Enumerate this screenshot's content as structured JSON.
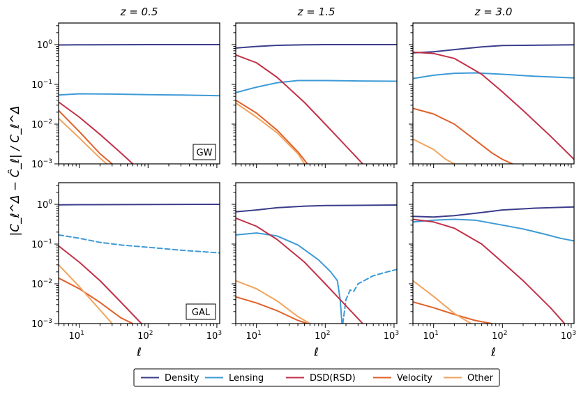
{
  "chart_data": {
    "type": "line",
    "figure": {
      "ylabel": "|C_ℓ^Δ − Ĉ_ℓ| / C_ℓ^Δ",
      "xlabel": "ℓ",
      "x_scale": "log",
      "y_scale": "log",
      "xlim": [
        5,
        1100
      ],
      "ylim": [
        0.001,
        3.5
      ],
      "x_ticks": [
        {
          "value": 10,
          "base": "10",
          "exp": "1"
        },
        {
          "value": 100,
          "base": "10",
          "exp": "2"
        },
        {
          "value": 1000,
          "base": "10",
          "exp": "3"
        }
      ],
      "y_ticks": [
        {
          "value": 1,
          "base": "10",
          "exp": "0"
        },
        {
          "value": 0.1,
          "base": "10",
          "exp": "−1"
        },
        {
          "value": 0.01,
          "base": "10",
          "exp": "−2"
        },
        {
          "value": 0.001,
          "base": "10",
          "exp": "−3"
        }
      ]
    },
    "columns": [
      "z = 0.5",
      "z = 1.5",
      "z = 3.0"
    ],
    "rows": [
      "GW",
      "GAL"
    ],
    "row_tags": [
      "GW",
      "GAL"
    ],
    "legend": {
      "position": "bottom-center",
      "entries": [
        {
          "name": "Density",
          "color": "#3b3d8b"
        },
        {
          "name": "Lensing",
          "color": "#3d9ad6"
        },
        {
          "name": "DSD(RSD)",
          "color": "#c23148"
        },
        {
          "name": "Velocity",
          "color": "#e0612b"
        },
        {
          "name": "Other",
          "color": "#f2a35c"
        }
      ]
    },
    "panels": [
      {
        "row": 0,
        "col": 0,
        "series": [
          {
            "name": "Density",
            "x": [
              5,
              10,
              100,
              1100
            ],
            "y": [
              0.98,
              0.99,
              1.0,
              1.0
            ]
          },
          {
            "name": "Lensing",
            "x": [
              5,
              10,
              30,
              100,
              300,
              1100
            ],
            "y": [
              0.054,
              0.058,
              0.057,
              0.055,
              0.054,
              0.052
            ]
          },
          {
            "name": "DSD(RSD)",
            "x": [
              5,
              10,
              20,
              40,
              60
            ],
            "y": [
              0.036,
              0.015,
              0.0055,
              0.0019,
              0.001
            ]
          },
          {
            "name": "Velocity",
            "x": [
              5,
              10,
              20,
              30
            ],
            "y": [
              0.022,
              0.0065,
              0.0018,
              0.001
            ]
          },
          {
            "name": "Other",
            "x": [
              5,
              10,
              20,
              25
            ],
            "y": [
              0.014,
              0.0045,
              0.0014,
              0.001
            ]
          }
        ]
      },
      {
        "row": 0,
        "col": 1,
        "series": [
          {
            "name": "Density",
            "x": [
              5,
              10,
              20,
              50,
              100,
              1100
            ],
            "y": [
              0.82,
              0.9,
              0.96,
              0.99,
              1.0,
              1.0
            ]
          },
          {
            "name": "Lensing",
            "x": [
              5,
              10,
              20,
              40,
              100,
              300,
              1100
            ],
            "y": [
              0.062,
              0.085,
              0.11,
              0.125,
              0.125,
              0.122,
              0.12
            ]
          },
          {
            "name": "DSD(RSD)",
            "x": [
              5,
              10,
              20,
              50,
              100,
              200,
              350
            ],
            "y": [
              0.55,
              0.35,
              0.15,
              0.035,
              0.01,
              0.0028,
              0.001
            ]
          },
          {
            "name": "Velocity",
            "x": [
              5,
              10,
              20,
              40,
              55
            ],
            "y": [
              0.04,
              0.019,
              0.007,
              0.002,
              0.001
            ]
          },
          {
            "name": "Other",
            "x": [
              5,
              10,
              20,
              40,
              50
            ],
            "y": [
              0.034,
              0.015,
              0.006,
              0.0018,
              0.001
            ]
          }
        ]
      },
      {
        "row": 0,
        "col": 2,
        "series": [
          {
            "name": "Density",
            "x": [
              5,
              10,
              20,
              50,
              100,
              1100
            ],
            "y": [
              0.62,
              0.66,
              0.75,
              0.88,
              0.95,
              0.99
            ]
          },
          {
            "name": "Lensing",
            "x": [
              5,
              10,
              20,
              40,
              100,
              300,
              1100
            ],
            "y": [
              0.14,
              0.17,
              0.19,
              0.195,
              0.18,
              0.16,
              0.145
            ]
          },
          {
            "name": "DSD(RSD)",
            "x": [
              5,
              10,
              20,
              50,
              100,
              200,
              500,
              1100
            ],
            "y": [
              0.65,
              0.6,
              0.45,
              0.18,
              0.065,
              0.022,
              0.005,
              0.0013
            ]
          },
          {
            "name": "Velocity",
            "x": [
              5,
              10,
              20,
              40,
              70,
              100,
              140
            ],
            "y": [
              0.025,
              0.018,
              0.01,
              0.004,
              0.0019,
              0.0013,
              0.001
            ]
          },
          {
            "name": "Other",
            "x": [
              5,
              10,
              15,
              20
            ],
            "y": [
              0.0042,
              0.0023,
              0.0013,
              0.001
            ]
          }
        ]
      },
      {
        "row": 1,
        "col": 0,
        "series": [
          {
            "name": "Density",
            "x": [
              5,
              10,
              100,
              1100
            ],
            "y": [
              0.97,
              0.98,
              0.99,
              1.0
            ]
          },
          {
            "name": "Lensing",
            "dashed": true,
            "x": [
              5,
              10,
              20,
              40,
              100,
              300,
              1100
            ],
            "y": [
              0.17,
              0.14,
              0.11,
              0.095,
              0.083,
              0.07,
              0.06
            ]
          },
          {
            "name": "DSD(RSD)",
            "x": [
              5,
              10,
              20,
              40,
              80
            ],
            "y": [
              0.09,
              0.035,
              0.012,
              0.0035,
              0.001
            ]
          },
          {
            "name": "Velocity",
            "x": [
              5,
              10,
              20,
              40,
              60
            ],
            "y": [
              0.014,
              0.0075,
              0.0034,
              0.0014,
              0.001
            ]
          },
          {
            "name": "Other",
            "x": [
              5,
              10,
              20,
              30
            ],
            "y": [
              0.03,
              0.0085,
              0.0022,
              0.001
            ]
          }
        ]
      },
      {
        "row": 1,
        "col": 1,
        "series": [
          {
            "name": "Density",
            "x": [
              5,
              10,
              20,
              50,
              100,
              1100
            ],
            "y": [
              0.65,
              0.72,
              0.82,
              0.9,
              0.93,
              0.96
            ]
          },
          {
            "name": "Lensing",
            "x": [
              5,
              10,
              20,
              40,
              80,
              120,
              150,
              165,
              175
            ],
            "y": [
              0.17,
              0.19,
              0.16,
              0.095,
              0.04,
              0.02,
              0.012,
              0.004,
              0.001
            ]
          },
          {
            "name": "Lensing",
            "dashed": true,
            "x": [
              180,
              200,
              230,
              260,
              300,
              500,
              800,
              1100
            ],
            "y": [
              0.001,
              0.004,
              0.007,
              0.0065,
              0.01,
              0.016,
              0.02,
              0.023
            ]
          },
          {
            "name": "DSD(RSD)",
            "x": [
              5,
              10,
              20,
              50,
              100,
              200,
              350
            ],
            "y": [
              0.45,
              0.28,
              0.13,
              0.035,
              0.01,
              0.0028,
              0.001
            ]
          },
          {
            "name": "Velocity",
            "x": [
              5,
              10,
              20,
              40,
              55
            ],
            "y": [
              0.0047,
              0.0033,
              0.0021,
              0.0012,
              0.001
            ]
          },
          {
            "name": "Other",
            "x": [
              5,
              10,
              20,
              40,
              60
            ],
            "y": [
              0.012,
              0.0075,
              0.0037,
              0.0015,
              0.001
            ]
          }
        ]
      },
      {
        "row": 1,
        "col": 2,
        "series": [
          {
            "name": "Density",
            "x": [
              5,
              10,
              20,
              50,
              100,
              300,
              1100
            ],
            "y": [
              0.5,
              0.48,
              0.52,
              0.62,
              0.72,
              0.8,
              0.86
            ]
          },
          {
            "name": "Lensing",
            "x": [
              5,
              10,
              20,
              40,
              100,
              200,
              400,
              700,
              1100
            ],
            "y": [
              0.36,
              0.4,
              0.42,
              0.4,
              0.3,
              0.24,
              0.18,
              0.14,
              0.12
            ]
          },
          {
            "name": "DSD(RSD)",
            "x": [
              5,
              10,
              20,
              50,
              100,
              200,
              500,
              800
            ],
            "y": [
              0.42,
              0.36,
              0.25,
              0.1,
              0.035,
              0.012,
              0.0025,
              0.001
            ]
          },
          {
            "name": "Velocity",
            "x": [
              5,
              10,
              20,
              40,
              70
            ],
            "y": [
              0.0035,
              0.0025,
              0.0017,
              0.0012,
              0.001
            ]
          },
          {
            "name": "Other",
            "x": [
              5,
              10,
              20,
              35
            ],
            "y": [
              0.012,
              0.0048,
              0.0018,
              0.001
            ]
          }
        ]
      }
    ]
  }
}
